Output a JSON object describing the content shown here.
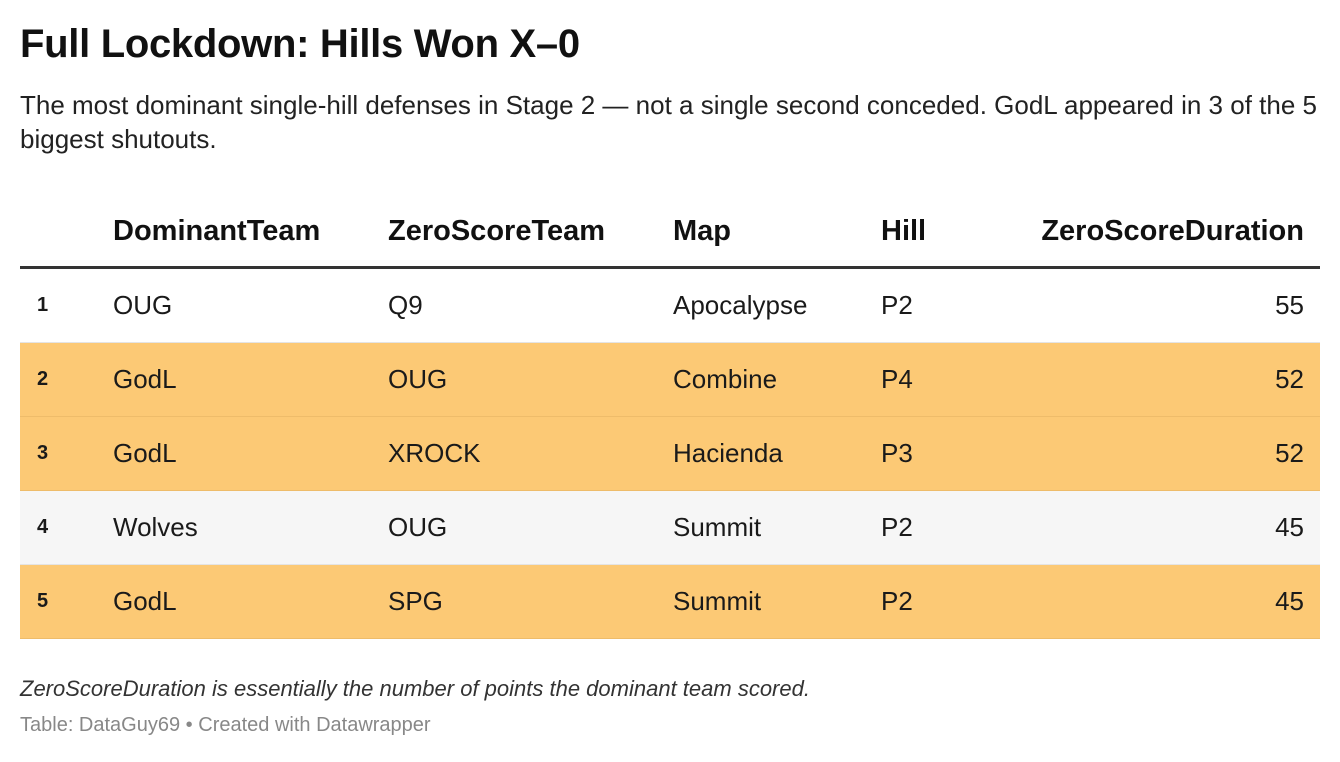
{
  "title": "Full Lockdown: Hills Won X–0",
  "subtitle": "The most dominant single-hill defenses in Stage 2 — not a single second conceded. GodL appeared in 3 of the 5 biggest shutouts.",
  "note": "ZeroScoreDuration is essentially the number of points the dominant team scored.",
  "footer": {
    "source": "Table: DataGuy69",
    "separator": "•",
    "credit": "Created with Datawrapper"
  },
  "colors": {
    "highlight": "#fcc975",
    "alt_row": "#f6f6f6",
    "header_rule": "#333333"
  },
  "chart_data": {
    "type": "table",
    "columns": [
      "",
      "DominantTeam",
      "ZeroScoreTeam",
      "Map",
      "Hill",
      "ZeroScoreDuration"
    ],
    "rows": [
      {
        "rank": "1",
        "DominantTeam": "OUG",
        "ZeroScoreTeam": "Q9",
        "Map": "Apocalypse",
        "Hill": "P2",
        "ZeroScoreDuration": "55",
        "highlighted": false
      },
      {
        "rank": "2",
        "DominantTeam": "GodL",
        "ZeroScoreTeam": "OUG",
        "Map": "Combine",
        "Hill": "P4",
        "ZeroScoreDuration": "52",
        "highlighted": true
      },
      {
        "rank": "3",
        "DominantTeam": "GodL",
        "ZeroScoreTeam": "XROCK",
        "Map": "Hacienda",
        "Hill": "P3",
        "ZeroScoreDuration": "52",
        "highlighted": true
      },
      {
        "rank": "4",
        "DominantTeam": "Wolves",
        "ZeroScoreTeam": "OUG",
        "Map": "Summit",
        "Hill": "P2",
        "ZeroScoreDuration": "45",
        "highlighted": false
      },
      {
        "rank": "5",
        "DominantTeam": "GodL",
        "ZeroScoreTeam": "SPG",
        "Map": "Summit",
        "Hill": "P2",
        "ZeroScoreDuration": "45",
        "highlighted": true
      }
    ]
  }
}
